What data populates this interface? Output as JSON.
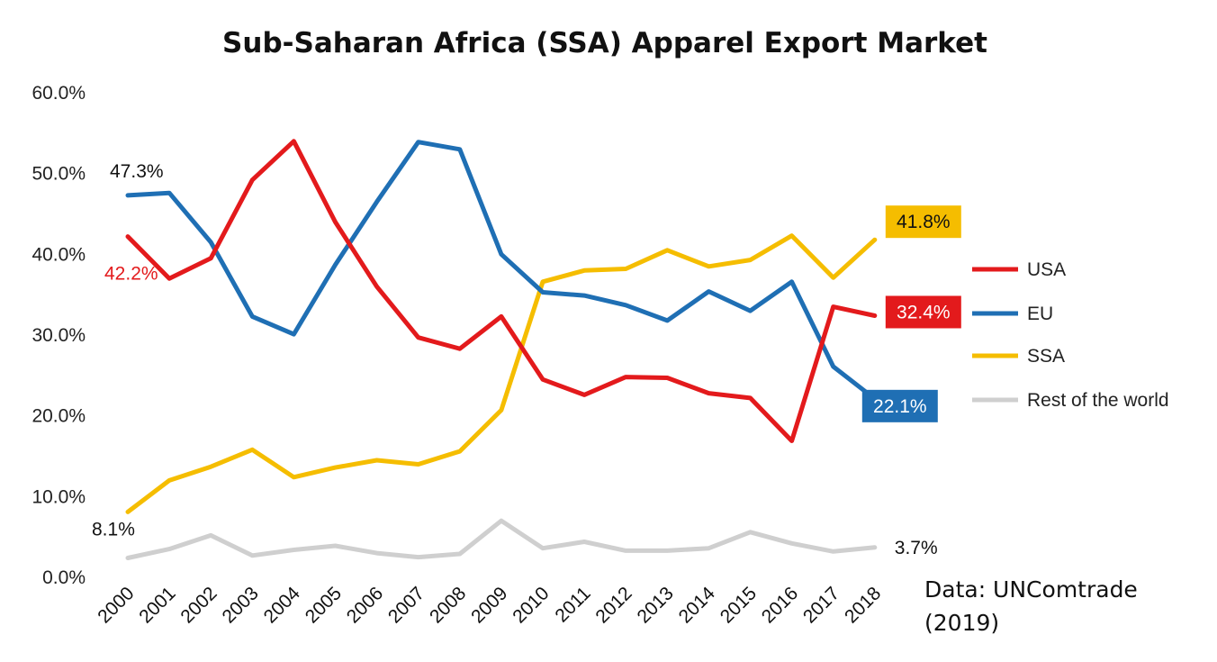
{
  "chart_data": {
    "type": "line",
    "title": "Sub-Saharan Africa (SSA) Apparel Export Market",
    "xlabel": "",
    "ylabel": "",
    "ylim": [
      0,
      60
    ],
    "y_ticks": [
      "0.0%",
      "10.0%",
      "20.0%",
      "30.0%",
      "40.0%",
      "50.0%",
      "60.0%"
    ],
    "categories": [
      "2000",
      "2001",
      "2002",
      "2003",
      "2004",
      "2005",
      "2006",
      "2007",
      "2008",
      "2009",
      "2010",
      "2011",
      "2012",
      "2013",
      "2014",
      "2015",
      "2016",
      "2017",
      "2018"
    ],
    "series": [
      {
        "name": "USA",
        "color": "#e31a1c",
        "values": [
          42.2,
          37.0,
          39.5,
          49.2,
          54.0,
          44.0,
          36.0,
          29.7,
          28.3,
          32.3,
          24.5,
          22.6,
          24.8,
          24.7,
          22.8,
          22.2,
          16.9,
          33.5,
          32.4
        ]
      },
      {
        "name": "EU",
        "color": "#1f6fb4",
        "values": [
          47.3,
          47.6,
          41.5,
          32.3,
          30.1,
          38.7,
          46.5,
          53.9,
          53.0,
          40.0,
          35.3,
          34.9,
          33.7,
          31.8,
          35.4,
          33.0,
          36.6,
          26.1,
          22.1
        ]
      },
      {
        "name": "SSA",
        "color": "#f5bd00",
        "values": [
          8.1,
          12.0,
          13.7,
          15.8,
          12.4,
          13.6,
          14.5,
          14.0,
          15.6,
          20.7,
          36.6,
          38.0,
          38.2,
          40.5,
          38.5,
          39.3,
          42.3,
          37.1,
          41.8
        ]
      },
      {
        "name": "Rest of the world",
        "color": "#cfcfcf",
        "values": [
          2.4,
          3.5,
          5.2,
          2.7,
          3.4,
          3.9,
          3.0,
          2.5,
          2.9,
          7.0,
          3.6,
          4.4,
          3.3,
          3.3,
          3.6,
          5.6,
          4.2,
          3.2,
          3.7
        ]
      }
    ],
    "data_labels": [
      {
        "series": "EU",
        "text": "47.3%",
        "style": "plain",
        "color": "#111111"
      },
      {
        "series": "USA",
        "text": "42.2%",
        "style": "plain",
        "color": "#e31a1c"
      },
      {
        "series": "SSA",
        "text": "8.1%",
        "style": "plain",
        "color": "#111111"
      },
      {
        "series": "SSA",
        "text": "41.8%",
        "style": "box",
        "color": "#f5bd00",
        "textColor": "#111111"
      },
      {
        "series": "USA",
        "text": "32.4%",
        "style": "box",
        "color": "#e31a1c",
        "textColor": "#ffffff"
      },
      {
        "series": "EU",
        "text": "22.1%",
        "style": "box",
        "color": "#1f6fb4",
        "textColor": "#ffffff"
      },
      {
        "series": "Rest of the world",
        "text": "3.7%",
        "style": "plain",
        "color": "#111111"
      }
    ],
    "legend_position": "right",
    "grid": false
  },
  "source": {
    "line1": "Data: UNComtrade",
    "line2": "(2019)"
  }
}
